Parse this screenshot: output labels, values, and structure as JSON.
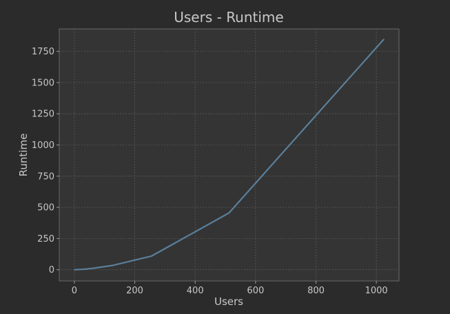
{
  "chart_data": {
    "type": "line",
    "title": "Users - Runtime",
    "xlabel": "Users",
    "ylabel": "Runtime",
    "xlim": [
      -50,
      1075
    ],
    "ylim": [
      -90,
      1930
    ],
    "xticks": [
      0,
      200,
      400,
      600,
      800,
      1000
    ],
    "yticks": [
      0,
      250,
      500,
      750,
      1000,
      1250,
      1500,
      1750
    ],
    "grid": true,
    "line_color": "#5a7f9b",
    "background_color": "#2b2b2b",
    "plot_background_color": "#343434",
    "series": [
      {
        "x": [
          1,
          2,
          4,
          8,
          16,
          32,
          64,
          128,
          256,
          512,
          1024
        ],
        "values": [
          0,
          0,
          0,
          1,
          2,
          4,
          12,
          35,
          110,
          455,
          1845
        ]
      }
    ]
  }
}
